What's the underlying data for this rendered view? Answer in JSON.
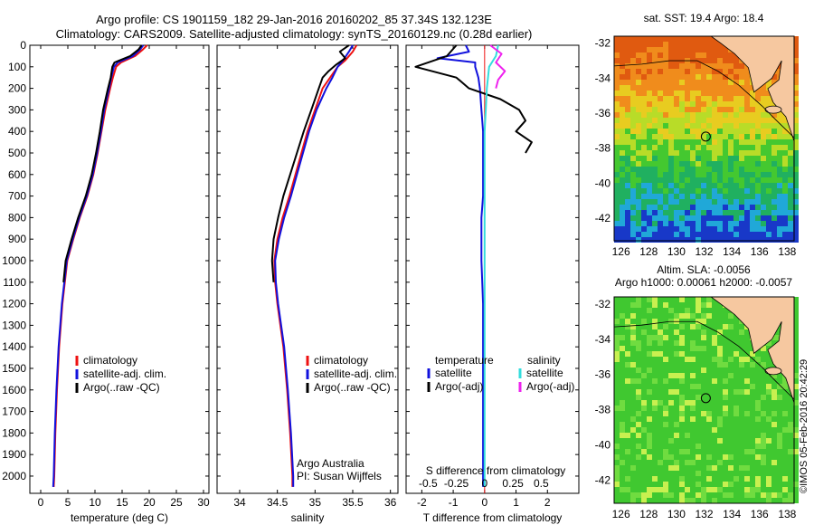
{
  "title_line1": "Argo profile: CS 1901159_182 29-Jan-2016 20160202_85 37.34S 132.123E",
  "title_line2": "Climatology: CARS2009. Satellite-adjusted climatology: synTS_20160129.nc (0.28d earlier)",
  "watermark": "©IMOS 05-Feb-2016 20:42:29",
  "colors": {
    "climatology": "#ee1111",
    "satellite": "#1111dd",
    "argo": "#000000",
    "salinity_sat": "#33dddd",
    "salinity_argo": "#ee22ee",
    "land": "#f6c8a0"
  },
  "chart_data": [
    {
      "type": "line",
      "xlabel": "temperature (deg C)",
      "ylabel": "",
      "xlim": [
        -2,
        31
      ],
      "ylim": [
        2080,
        0
      ],
      "xticks": [
        0,
        5,
        10,
        15,
        20,
        25,
        30
      ],
      "yticks": [
        0,
        100,
        200,
        300,
        400,
        500,
        600,
        700,
        800,
        900,
        1000,
        1100,
        1200,
        1300,
        1400,
        1500,
        1600,
        1700,
        1800,
        1900,
        2000
      ],
      "legend": [
        "climatology",
        "satellite-adj. clim.",
        "Argo(..raw -QC)"
      ],
      "series": [
        {
          "name": "climatology",
          "color": "#ee1111",
          "depth": [
            0,
            20,
            50,
            80,
            100,
            150,
            200,
            300,
            400,
            500,
            600,
            700,
            800,
            900,
            1000,
            1200,
            1400,
            1600,
            1800,
            2000,
            2050
          ],
          "values": [
            19.6,
            18.8,
            17.4,
            14.8,
            13.9,
            13.3,
            12.8,
            11.9,
            11.2,
            10.5,
            9.7,
            8.6,
            7.2,
            6.0,
            4.9,
            4.0,
            3.4,
            3.0,
            2.7,
            2.5,
            2.4
          ]
        },
        {
          "name": "satellite-adj. clim.",
          "color": "#1111dd",
          "depth": [
            0,
            20,
            50,
            80,
            100,
            150,
            200,
            300,
            400,
            500,
            600,
            700,
            800,
            900,
            1000,
            1200,
            1400,
            1600,
            1800,
            2000,
            2050
          ],
          "values": [
            18.9,
            18.3,
            17.0,
            14.2,
            13.5,
            13.0,
            12.6,
            11.7,
            11.1,
            10.4,
            9.6,
            8.5,
            7.1,
            5.9,
            4.8,
            3.9,
            3.3,
            2.9,
            2.6,
            2.4,
            2.3
          ]
        },
        {
          "name": "Argo(..raw -QC)",
          "color": "#000000",
          "depth": [
            0,
            20,
            50,
            80,
            100,
            150,
            200,
            300,
            400,
            500,
            600,
            700,
            800,
            900,
            1000,
            1100
          ],
          "values": [
            18.6,
            18.0,
            16.5,
            13.6,
            13.2,
            12.9,
            12.4,
            11.5,
            10.9,
            10.2,
            9.4,
            8.3,
            6.9,
            5.7,
            4.6,
            4.2
          ]
        }
      ]
    },
    {
      "type": "line",
      "xlabel": "salinity",
      "xlim": [
        33.7,
        36.1
      ],
      "ylim": [
        2080,
        0
      ],
      "xticks": [
        34,
        34.5,
        35,
        35.5,
        36
      ],
      "legend": [
        "climatology",
        "satellite-adj. clim.",
        "Argo(..raw -QC)"
      ],
      "annotations": [
        "Argo Australia",
        "PI: Susan Wijffels"
      ],
      "series": [
        {
          "name": "climatology",
          "color": "#ee1111",
          "depth": [
            0,
            30,
            70,
            100,
            150,
            200,
            300,
            400,
            500,
            600,
            700,
            800,
            900,
            1000,
            1100,
            1200,
            1400,
            1600,
            1800,
            2000,
            2050
          ],
          "values": [
            35.55,
            35.5,
            35.4,
            35.3,
            35.2,
            35.1,
            35.0,
            34.9,
            34.82,
            34.74,
            34.66,
            34.57,
            34.5,
            34.46,
            34.47,
            34.5,
            34.58,
            34.63,
            34.67,
            34.7,
            34.7
          ]
        },
        {
          "name": "satellite-adj. clim.",
          "color": "#1111dd",
          "depth": [
            0,
            30,
            70,
            100,
            150,
            200,
            300,
            400,
            500,
            600,
            700,
            800,
            900,
            1000,
            1100,
            1200,
            1400,
            1600,
            1800,
            2000,
            2050
          ],
          "values": [
            35.5,
            35.45,
            35.37,
            35.3,
            35.23,
            35.15,
            35.02,
            34.92,
            34.84,
            34.76,
            34.68,
            34.59,
            34.52,
            34.47,
            34.48,
            34.51,
            34.59,
            34.64,
            34.68,
            34.71,
            34.71
          ]
        },
        {
          "name": "Argo(..raw -QC)",
          "color": "#000000",
          "depth": [
            0,
            30,
            60,
            90,
            120,
            150,
            200,
            300,
            400,
            500,
            600,
            700,
            800,
            900,
            1000,
            1100
          ],
          "values": [
            35.45,
            35.33,
            35.4,
            35.28,
            35.18,
            35.1,
            35.05,
            34.95,
            34.85,
            34.76,
            34.67,
            34.58,
            34.51,
            34.45,
            34.43,
            34.45
          ]
        }
      ]
    },
    {
      "type": "line",
      "xlabel": "T difference from climatology",
      "xlabel_top": "S difference from climatology",
      "xlim": [
        -2.5,
        3.0
      ],
      "ylim": [
        2080,
        0
      ],
      "xticks": [
        -2,
        -1,
        0,
        1,
        2
      ],
      "xticks_top": [
        -0.5,
        -0.25,
        0,
        0.25,
        0.5
      ],
      "xticks_top_labels": [
        "-0.5",
        "-0.25",
        "0",
        "0.25",
        "0.5"
      ],
      "legend_left_title": "temperature",
      "legend_right_title": "salinity",
      "legend_left": [
        "satellite",
        "Argo(-adj)"
      ],
      "legend_right": [
        "satellite",
        "Argo(-adj)"
      ],
      "series": [
        {
          "name": "temperature satellite",
          "color": "#1111dd",
          "depth": [
            0,
            30,
            60,
            80,
            100,
            150,
            200,
            300,
            400,
            500,
            600,
            700,
            800,
            900,
            1000,
            1200,
            1400,
            1600,
            1800,
            2000,
            2050
          ],
          "values": [
            -0.6,
            -0.5,
            -1.5,
            -0.3,
            -0.3,
            -0.2,
            -0.15,
            -0.1,
            -0.05,
            -0.05,
            -0.05,
            -0.05,
            -0.1,
            -0.1,
            -0.1,
            -0.05,
            -0.05,
            -0.05,
            -0.05,
            -0.05,
            -0.05
          ]
        },
        {
          "name": "temperature Argo(-adj)",
          "color": "#000000",
          "depth": [
            0,
            50,
            100,
            150,
            200,
            250,
            300,
            350,
            400,
            450,
            500
          ],
          "values": [
            -0.9,
            -1.2,
            -2.2,
            -0.9,
            -0.5,
            0.5,
            1.1,
            1.3,
            1.0,
            1.5,
            1.3
          ]
        },
        {
          "name": "salinity satellite",
          "color": "#33dddd",
          "depth": [
            0,
            50,
            100,
            200,
            300,
            400,
            600,
            800,
            1000,
            1200,
            1600,
            2000,
            2050
          ],
          "values": [
            0.12,
            0.1,
            0.04,
            0.02,
            0.01,
            0.0,
            0.0,
            0.0,
            0.0,
            0.0,
            0.0,
            0.0,
            0.0
          ]
        },
        {
          "name": "salinity Argo(-adj)",
          "color": "#ee22ee",
          "depth": [
            0,
            40,
            80,
            120,
            160,
            200
          ],
          "values": [
            0.05,
            0.15,
            0.1,
            0.18,
            0.12,
            0.1
          ]
        }
      ]
    },
    {
      "type": "heatmap",
      "title": "sat. SST: 19.4  Argo: 18.4",
      "xlim": [
        125.5,
        138.5
      ],
      "ylim": [
        -43.3,
        -31.6
      ],
      "xticks": [
        126,
        128,
        130,
        132,
        134,
        136,
        138
      ],
      "yticks": [
        -32,
        -34,
        -36,
        -38,
        -40,
        -42
      ],
      "marker": {
        "lon": 132.123,
        "lat": -37.34
      }
    },
    {
      "type": "heatmap",
      "title": "Altim. SLA: -0.0056",
      "subtitle": "Argo h1000: 0.00061 h2000: -0.0057",
      "xlim": [
        125.5,
        138.5
      ],
      "ylim": [
        -43.3,
        -31.6
      ],
      "xticks": [
        126,
        128,
        130,
        132,
        134,
        136,
        138
      ],
      "yticks": [
        -32,
        -34,
        -36,
        -38,
        -40,
        -42
      ],
      "marker": {
        "lon": 132.123,
        "lat": -37.34
      }
    }
  ]
}
